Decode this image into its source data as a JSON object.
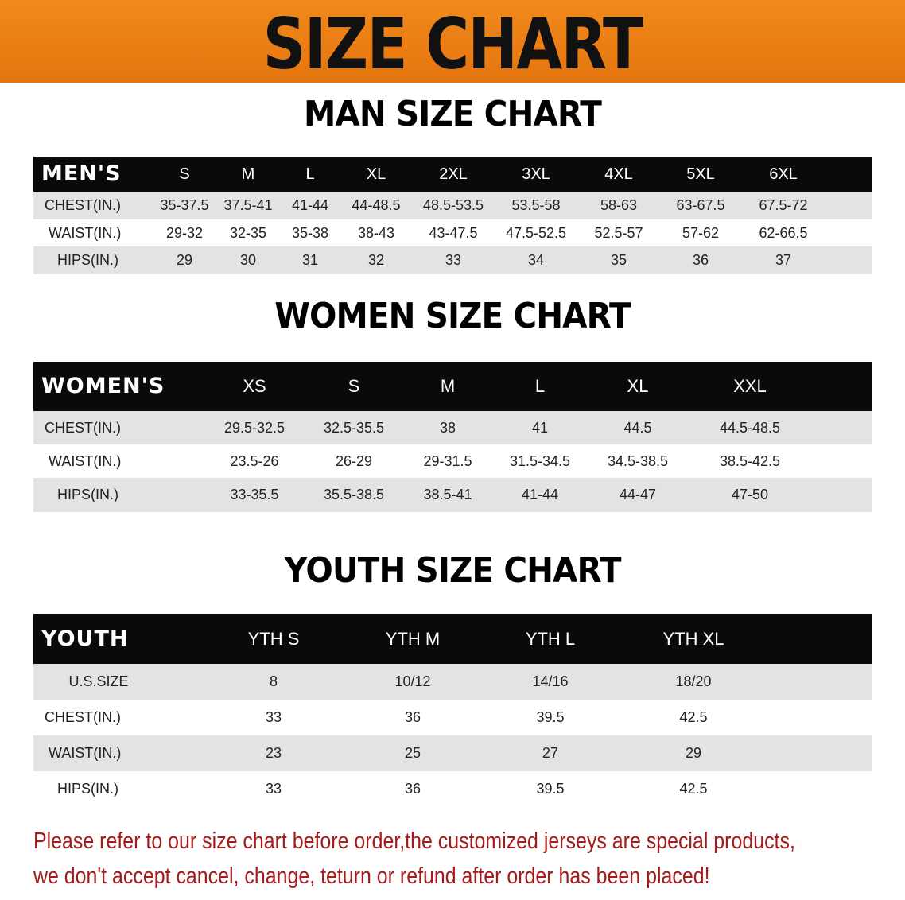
{
  "banner": {
    "title": "SIZE CHART",
    "color": "#e97d15"
  },
  "tables": [
    {
      "title": "MAN SIZE CHART",
      "header_label": "MEN'S",
      "columns": [
        "S",
        "M",
        "L",
        "XL",
        "2XL",
        "3XL",
        "4XL",
        "5XL",
        "6XL"
      ],
      "rows": [
        {
          "label": "CHEST(IN.)",
          "values": [
            "35-37.5",
            "37.5-41",
            "41-44",
            "44-48.5",
            "48.5-53.5",
            "53.5-58",
            "58-63",
            "63-67.5",
            "67.5-72"
          ]
        },
        {
          "label": "WAIST(IN.)",
          "values": [
            "29-32",
            "32-35",
            "35-38",
            "38-43",
            "43-47.5",
            "47.5-52.5",
            "52.5-57",
            "57-62",
            "62-66.5"
          ]
        },
        {
          "label": "HIPS(IN.)",
          "values": [
            "29",
            "30",
            "31",
            "32",
            "33",
            "34",
            "35",
            "36",
            "37"
          ]
        }
      ]
    },
    {
      "title": "WOMEN SIZE CHART",
      "header_label": "WOMEN'S",
      "columns": [
        "XS",
        "S",
        "M",
        "L",
        "XL",
        "XXL"
      ],
      "rows": [
        {
          "label": "CHEST(IN.)",
          "values": [
            "29.5-32.5",
            "32.5-35.5",
            "38",
            "41",
            "44.5",
            "44.5-48.5"
          ]
        },
        {
          "label": "WAIST(IN.)",
          "values": [
            "23.5-26",
            "26-29",
            "29-31.5",
            "31.5-34.5",
            "34.5-38.5",
            "38.5-42.5"
          ]
        },
        {
          "label": "HIPS(IN.)",
          "values": [
            "33-35.5",
            "35.5-38.5",
            "38.5-41",
            "41-44",
            "44-47",
            "47-50"
          ]
        }
      ]
    },
    {
      "title": "YOUTH SIZE CHART",
      "header_label": "YOUTH",
      "columns": [
        "YTH S",
        "YTH M",
        "YTH L",
        "YTH XL"
      ],
      "rows": [
        {
          "label": "U.S.SIZE",
          "values": [
            "8",
            "10/12",
            "14/16",
            "18/20"
          ]
        },
        {
          "label": "CHEST(IN.)",
          "values": [
            "33",
            "36",
            "39.5",
            "42.5"
          ]
        },
        {
          "label": "WAIST(IN.)",
          "values": [
            "23",
            "25",
            "27",
            "29"
          ]
        },
        {
          "label": "HIPS(IN.)",
          "values": [
            "33",
            "36",
            "39.5",
            "42.5"
          ]
        }
      ]
    }
  ],
  "notice": {
    "line1": "Please refer to our size chart before order,the customized jerseys are special products,",
    "line2": "we don't accept cancel, change, teturn or refund after order has been placed!",
    "color": "#a61a1a"
  }
}
